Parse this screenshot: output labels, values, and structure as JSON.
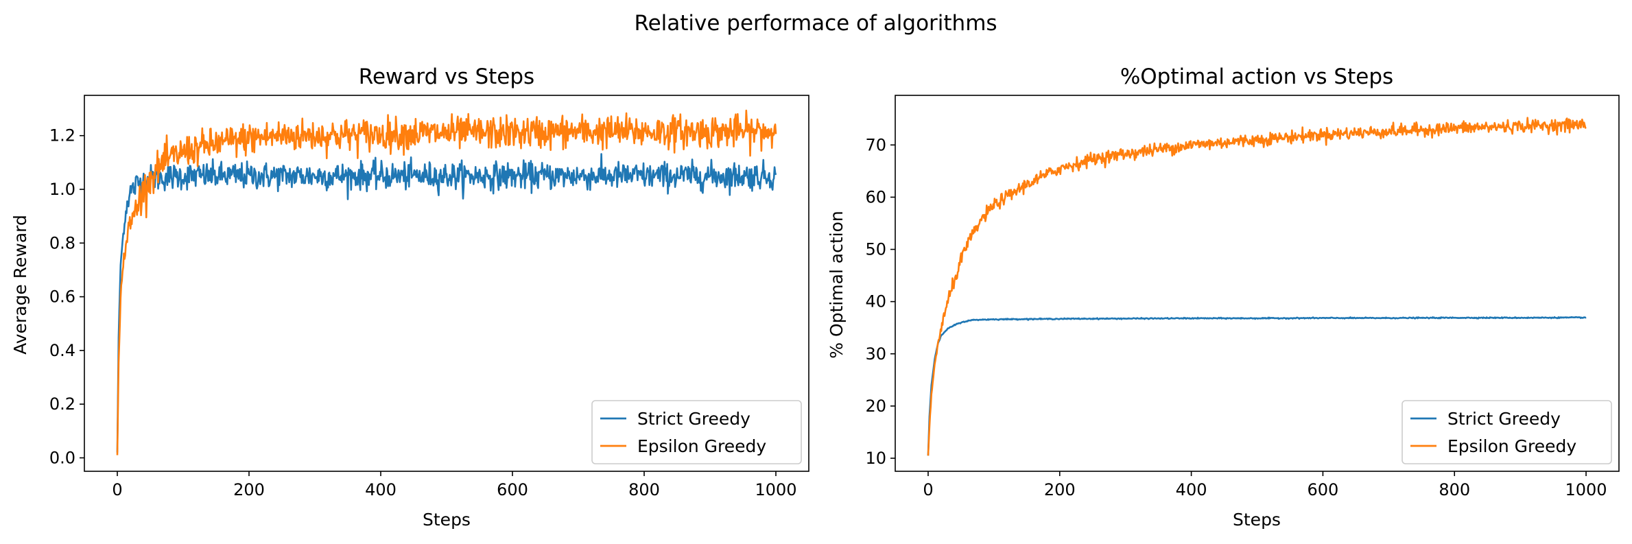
{
  "suptitle": "Relative performace of algorithms",
  "colors": {
    "strict": "#1f77b4",
    "epsilon": "#ff7f0e"
  },
  "chart_data": [
    {
      "type": "line",
      "title": "Reward vs Steps",
      "xlabel": "Steps",
      "ylabel": "Average Reward",
      "xlim": [
        -50,
        1050
      ],
      "ylim": [
        -0.05,
        1.35
      ],
      "xticks": [
        0,
        200,
        400,
        600,
        800,
        1000
      ],
      "xtick_labels": [
        "0",
        "200",
        "400",
        "600",
        "800",
        "1000"
      ],
      "yticks": [
        0.0,
        0.2,
        0.4,
        0.6,
        0.8,
        1.0,
        1.2
      ],
      "ytick_labels": [
        "0.0",
        "0.2",
        "0.4",
        "0.6",
        "0.8",
        "1.0",
        "1.2"
      ],
      "legend": "lower-right",
      "grid": false,
      "series": [
        {
          "name": "Strict Greedy",
          "color": "#1f77b4",
          "x": [
            0,
            2,
            5,
            10,
            15,
            20,
            30,
            40,
            50,
            70,
            100,
            150,
            200,
            300,
            400,
            500,
            600,
            700,
            800,
            900,
            1000
          ],
          "y": [
            0.02,
            0.45,
            0.72,
            0.86,
            0.95,
            0.99,
            1.02,
            1.03,
            1.04,
            1.045,
            1.05,
            1.05,
            1.05,
            1.05,
            1.05,
            1.05,
            1.05,
            1.05,
            1.05,
            1.05,
            1.05
          ],
          "noise": 0.025
        },
        {
          "name": "Epsilon Greedy",
          "color": "#ff7f0e",
          "x": [
            0,
            2,
            5,
            10,
            15,
            20,
            30,
            40,
            50,
            70,
            100,
            150,
            200,
            250,
            300,
            400,
            500,
            600,
            700,
            800,
            900,
            1000
          ],
          "y": [
            0.01,
            0.35,
            0.6,
            0.75,
            0.82,
            0.87,
            0.94,
            1.0,
            1.04,
            1.1,
            1.14,
            1.17,
            1.19,
            1.2,
            1.2,
            1.205,
            1.21,
            1.21,
            1.215,
            1.215,
            1.215,
            1.215
          ],
          "noise": 0.03
        }
      ]
    },
    {
      "type": "line",
      "title": "%Optimal action vs Steps",
      "xlabel": "Steps",
      "ylabel": "% Optimal action",
      "xlim": [
        -50,
        1050
      ],
      "ylim": [
        7.5,
        79.5
      ],
      "xticks": [
        0,
        200,
        400,
        600,
        800,
        1000
      ],
      "xtick_labels": [
        "0",
        "200",
        "400",
        "600",
        "800",
        "1000"
      ],
      "yticks": [
        10,
        20,
        30,
        40,
        50,
        60,
        70
      ],
      "ytick_labels": [
        "10",
        "20",
        "30",
        "40",
        "50",
        "60",
        "70"
      ],
      "legend": "lower-right",
      "grid": false,
      "series": [
        {
          "name": "Strict Greedy",
          "color": "#1f77b4",
          "x": [
            0,
            2,
            5,
            10,
            15,
            20,
            30,
            40,
            50,
            60,
            70,
            100,
            200,
            300,
            400,
            500,
            600,
            700,
            800,
            900,
            1000
          ],
          "y": [
            10.5,
            18,
            24,
            29,
            32,
            33.5,
            34.8,
            35.5,
            36.0,
            36.3,
            36.5,
            36.6,
            36.7,
            36.75,
            36.8,
            36.8,
            36.85,
            36.85,
            36.9,
            36.9,
            36.95
          ],
          "noise": 0.05
        },
        {
          "name": "Epsilon Greedy",
          "color": "#ff7f0e",
          "x": [
            0,
            2,
            5,
            10,
            15,
            20,
            30,
            40,
            50,
            60,
            80,
            100,
            150,
            200,
            250,
            300,
            400,
            500,
            600,
            700,
            800,
            900,
            1000
          ],
          "y": [
            10.5,
            16,
            22,
            28,
            32,
            35,
            40,
            44,
            48,
            51,
            55.5,
            58.5,
            62.5,
            65.5,
            67.3,
            68.3,
            70.0,
            71.0,
            72.0,
            72.6,
            73.2,
            73.6,
            73.9
          ],
          "noise": 0.6
        }
      ]
    }
  ]
}
